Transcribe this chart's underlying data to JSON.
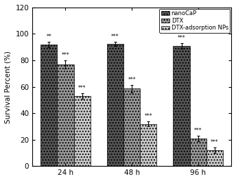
{
  "groups": [
    "24 h",
    "48 h",
    "96 h"
  ],
  "series": [
    "nanoCaP",
    "DTX",
    "DTX-adsorption NPs"
  ],
  "values": [
    [
      92.0,
      77.0,
      53.0
    ],
    [
      92.5,
      58.5,
      32.0
    ],
    [
      91.0,
      21.0,
      12.0
    ]
  ],
  "errors": [
    [
      2.0,
      3.0,
      2.0
    ],
    [
      1.5,
      3.0,
      2.0
    ],
    [
      2.0,
      2.0,
      2.0
    ]
  ],
  "annotations": [
    [
      "**",
      "***",
      "***"
    ],
    [
      "***",
      "***",
      "***"
    ],
    [
      "***",
      "***",
      "***"
    ]
  ],
  "bar_colors": [
    "#555555",
    "#999999",
    "#cccccc"
  ],
  "bar_hatches": [
    "....",
    "....",
    "...."
  ],
  "ylabel": "Survival Percent (%)",
  "ylim": [
    0,
    120
  ],
  "yticks": [
    0,
    20,
    40,
    60,
    80,
    100,
    120
  ],
  "background_color": "#ffffff",
  "bar_width": 0.25,
  "legend_labels": [
    "nanoCaP",
    "DTX",
    "DTX-adsorption NPs"
  ],
  "legend_colors": [
    "#555555",
    "#999999",
    "#cccccc"
  ],
  "legend_hatches": [
    "....",
    "....",
    "...."
  ]
}
